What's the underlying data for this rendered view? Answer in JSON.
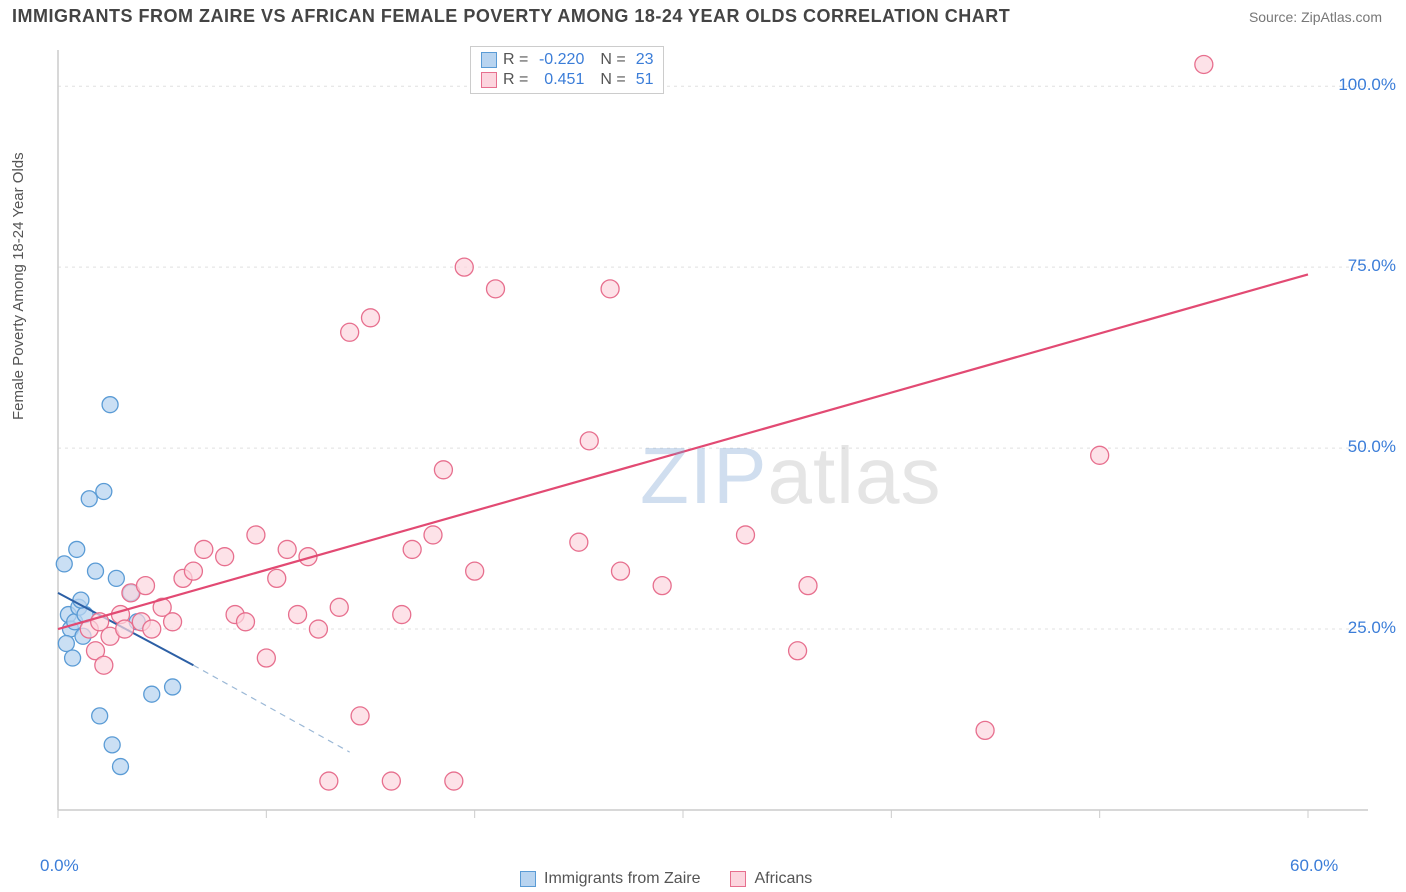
{
  "header": {
    "title": "IMMIGRANTS FROM ZAIRE VS AFRICAN FEMALE POVERTY AMONG 18-24 YEAR OLDS CORRELATION CHART",
    "source": "Source: ZipAtlas.com"
  },
  "chart": {
    "type": "scatter",
    "ylabel": "Female Poverty Among 18-24 Year Olds",
    "xlim": [
      0,
      60
    ],
    "ylim": [
      0,
      105
    ],
    "xtick_positions": [
      0,
      10,
      20,
      30,
      40,
      50,
      60
    ],
    "xtick_labels": [
      "0.0%",
      "",
      "",
      "",
      "",
      "",
      "60.0%"
    ],
    "ytick_positions": [
      25,
      50,
      75,
      100
    ],
    "ytick_labels": [
      "25.0%",
      "50.0%",
      "75.0%",
      "100.0%"
    ],
    "grid_color": "#e0e0e0",
    "background_color": "#ffffff",
    "axis_color": "#cccccc",
    "watermark": {
      "part1": "ZIP",
      "part2": "atlas"
    },
    "series": [
      {
        "name": "Immigrants from Zaire",
        "marker_fill": "#b8d4f0",
        "marker_stroke": "#5a9bd5",
        "marker_opacity": 0.75,
        "marker_radius": 8,
        "R": "-0.220",
        "N": "23",
        "trend": {
          "x1": 0,
          "y1": 30,
          "x2": 6.5,
          "y2": 20,
          "color": "#2c5fa5",
          "width": 2
        },
        "trend_ext": {
          "x1": 6.5,
          "y1": 20,
          "x2": 14,
          "y2": 8,
          "color": "#9bb8d6",
          "width": 1.2,
          "dash": "6,5"
        },
        "points": [
          [
            0.5,
            27
          ],
          [
            0.6,
            25
          ],
          [
            0.8,
            26
          ],
          [
            1.0,
            28
          ],
          [
            1.2,
            24
          ],
          [
            0.4,
            23
          ],
          [
            0.7,
            21
          ],
          [
            2.5,
            56
          ],
          [
            1.5,
            43
          ],
          [
            2.2,
            44
          ],
          [
            1.8,
            33
          ],
          [
            2.8,
            32
          ],
          [
            3.5,
            30
          ],
          [
            3.8,
            26
          ],
          [
            1.3,
            27
          ],
          [
            1.1,
            29
          ],
          [
            2.0,
            13
          ],
          [
            2.6,
            9
          ],
          [
            3.0,
            6
          ],
          [
            4.5,
            16
          ],
          [
            5.5,
            17
          ],
          [
            0.3,
            34
          ],
          [
            0.9,
            36
          ]
        ]
      },
      {
        "name": "Africans",
        "marker_fill": "#fcd5de",
        "marker_stroke": "#e76f8e",
        "marker_opacity": 0.7,
        "marker_radius": 9,
        "R": "0.451",
        "N": "51",
        "trend": {
          "x1": 0,
          "y1": 25,
          "x2": 60,
          "y2": 74,
          "color": "#e24a73",
          "width": 2.2
        },
        "points": [
          [
            1.5,
            25
          ],
          [
            2.0,
            26
          ],
          [
            2.5,
            24
          ],
          [
            3.0,
            27
          ],
          [
            1.8,
            22
          ],
          [
            2.2,
            20
          ],
          [
            3.2,
            25
          ],
          [
            4.0,
            26
          ],
          [
            4.5,
            25
          ],
          [
            5.0,
            28
          ],
          [
            5.5,
            26
          ],
          [
            6.0,
            32
          ],
          [
            6.5,
            33
          ],
          [
            7.0,
            36
          ],
          [
            8.0,
            35
          ],
          [
            8.5,
            27
          ],
          [
            9.0,
            26
          ],
          [
            9.5,
            38
          ],
          [
            10.0,
            21
          ],
          [
            11.0,
            36
          ],
          [
            12.0,
            35
          ],
          [
            12.5,
            25
          ],
          [
            13.0,
            4
          ],
          [
            14.0,
            66
          ],
          [
            14.5,
            13
          ],
          [
            15.0,
            68
          ],
          [
            16.0,
            4
          ],
          [
            17.0,
            36
          ],
          [
            18.0,
            38
          ],
          [
            18.5,
            47
          ],
          [
            19.0,
            4
          ],
          [
            19.5,
            75
          ],
          [
            20.0,
            33
          ],
          [
            21.0,
            72
          ],
          [
            16.5,
            27
          ],
          [
            25.0,
            37
          ],
          [
            25.5,
            51
          ],
          [
            27.0,
            33
          ],
          [
            26.5,
            72
          ],
          [
            33.0,
            38
          ],
          [
            29.0,
            31
          ],
          [
            35.5,
            22
          ],
          [
            36.0,
            31
          ],
          [
            50.0,
            49
          ],
          [
            44.5,
            11
          ],
          [
            55.0,
            103
          ],
          [
            3.5,
            30
          ],
          [
            4.2,
            31
          ],
          [
            11.5,
            27
          ],
          [
            10.5,
            32
          ],
          [
            13.5,
            28
          ]
        ]
      }
    ],
    "legend_bottom": [
      {
        "label": "Immigrants from Zaire",
        "fill": "#b8d4f0",
        "stroke": "#5a9bd5"
      },
      {
        "label": "Africans",
        "fill": "#fcd5de",
        "stroke": "#e76f8e"
      }
    ]
  }
}
